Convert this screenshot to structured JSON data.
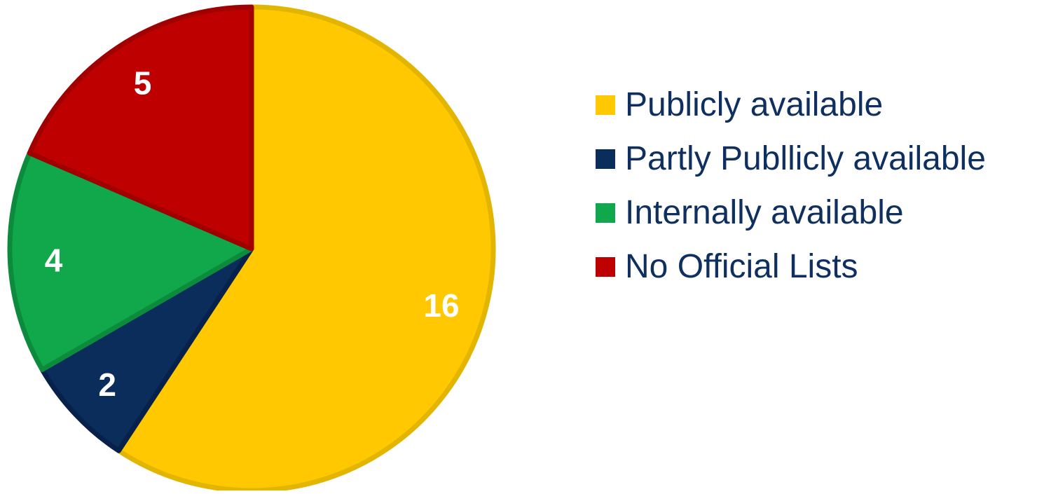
{
  "chart_data": {
    "type": "pie",
    "title": "",
    "categories": [
      "Publicly available",
      "Partly Publlicly available",
      "Internally available",
      "No Official Lists"
    ],
    "values": [
      16,
      2,
      4,
      5
    ],
    "data_labels": [
      "16",
      "2",
      "4",
      "5"
    ],
    "colors": [
      "#ffc800",
      "#0a2d5c",
      "#10a84a",
      "#be0000"
    ],
    "border_colors": [
      "#e2b500",
      "#07214a",
      "#0c8b3c",
      "#a10000"
    ],
    "start_angle_deg": 0,
    "direction": "clockwise",
    "legend_position": "right"
  }
}
